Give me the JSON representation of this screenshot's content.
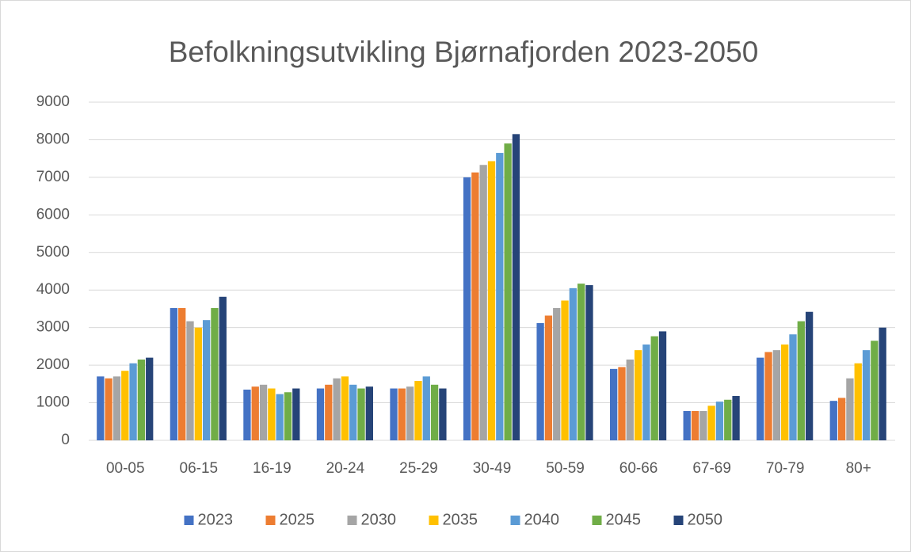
{
  "chart_data": {
    "type": "bar",
    "title": "Befolkningsutvikling Bjørnafjorden 2023-2050",
    "categories": [
      "00-05",
      "06-15",
      "16-19",
      "20-24",
      "25-29",
      "30-49",
      "50-59",
      "60-66",
      "67-69",
      "70-79",
      "80+"
    ],
    "series": [
      {
        "name": "2023",
        "color": "#4472c4",
        "values": [
          1700,
          3520,
          1350,
          1380,
          1380,
          7000,
          3120,
          1900,
          780,
          2200,
          1050
        ]
      },
      {
        "name": "2025",
        "color": "#ed7d31",
        "values": [
          1650,
          3520,
          1430,
          1480,
          1380,
          7130,
          3320,
          1950,
          780,
          2350,
          1130
        ]
      },
      {
        "name": "2030",
        "color": "#a5a5a5",
        "values": [
          1700,
          3170,
          1480,
          1650,
          1430,
          7330,
          3520,
          2150,
          780,
          2400,
          1650
        ]
      },
      {
        "name": "2035",
        "color": "#ffc000",
        "values": [
          1850,
          3000,
          1380,
          1700,
          1580,
          7430,
          3720,
          2400,
          920,
          2550,
          2050
        ]
      },
      {
        "name": "2040",
        "color": "#5b9bd5",
        "values": [
          2050,
          3200,
          1230,
          1480,
          1700,
          7650,
          4050,
          2550,
          1030,
          2820,
          2400
        ]
      },
      {
        "name": "2045",
        "color": "#70ad47",
        "values": [
          2150,
          3520,
          1280,
          1380,
          1480,
          7900,
          4170,
          2770,
          1080,
          3170,
          2650
        ]
      },
      {
        "name": "2050",
        "color": "#264478",
        "values": [
          2200,
          3820,
          1380,
          1430,
          1380,
          8150,
          4130,
          2900,
          1180,
          3420,
          3000
        ]
      }
    ],
    "ylim": [
      0,
      9000
    ],
    "yticks": [
      0,
      1000,
      2000,
      3000,
      4000,
      5000,
      6000,
      7000,
      8000,
      9000
    ],
    "grid": true,
    "legend": "bottom"
  }
}
